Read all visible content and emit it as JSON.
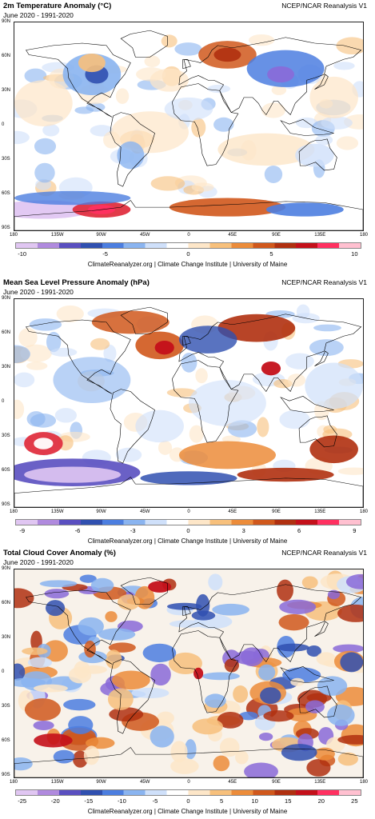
{
  "panels": [
    {
      "title": "2m Temperature Anomaly (°C)",
      "subtitle": "June 2020 - 1991-2020",
      "source": "NCEP/NCAR Reanalysis V1",
      "colorbar_ticks": [
        "-10",
        "-5",
        "0",
        "5",
        "10"
      ],
      "credit": "ClimateReanalyzer.org | Climate Change Institute | University of Maine"
    },
    {
      "title": "Mean Sea Level Pressure Anomaly (hPa)",
      "subtitle": "June 2020 - 1991-2020",
      "source": "NCEP/NCAR Reanalysis V1",
      "colorbar_ticks": [
        "-9",
        "-6",
        "-3",
        "0",
        "3",
        "6",
        "9"
      ],
      "credit": "ClimateReanalyzer.org | Climate Change Institute | University of Maine"
    },
    {
      "title": "Total Cloud Cover Anomaly (%)",
      "subtitle": "June 2020 - 1991-2020",
      "source": "NCEP/NCAR Reanalysis V1",
      "colorbar_ticks": [
        "-25",
        "-20",
        "-15",
        "-10",
        "-5",
        "0",
        "5",
        "10",
        "15",
        "20",
        "25"
      ],
      "credit": "ClimateReanalyzer.org | Climate Change Institute | University of Maine"
    }
  ],
  "axes": {
    "lat_labels": [
      "90N",
      "60N",
      "30N",
      "0",
      "30S",
      "60S",
      "90S"
    ],
    "lon_labels": [
      "180",
      "135W",
      "90W",
      "45W",
      "0",
      "45E",
      "90E",
      "135E",
      "180"
    ]
  },
  "colors": {
    "negative_extreme": "#e8c8f0",
    "negative_strong": "#2a3c9c",
    "negative_mid": "#4c6ed0",
    "negative_light": "#d6e6fa",
    "neutral": "#ffffff",
    "positive_light": "#fbe3c6",
    "positive_mid": "#e98a36",
    "positive_strong": "#b83a14",
    "positive_extreme": "#ff3a6a",
    "coastline": "#000000"
  }
}
